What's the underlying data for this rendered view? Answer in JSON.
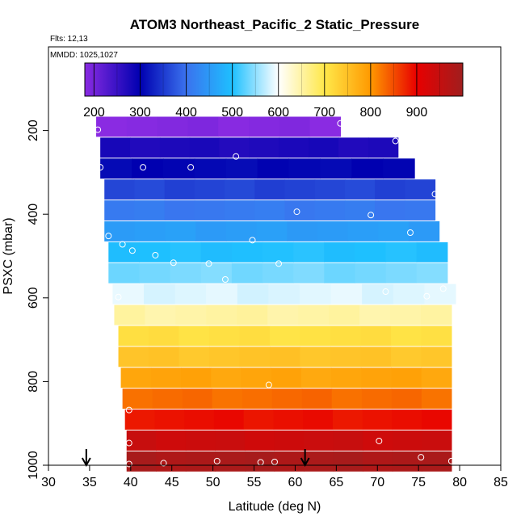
{
  "chart_data": {
    "type": "heatmap",
    "title": "ATOM3 Northeast_Pacific_2 Static_Pressure",
    "flights_label": "Flts: 12,13",
    "dates_label": "MMDD: 1025,1027",
    "xlabel": "Latitude (deg N)",
    "ylabel": "PSXC (mbar)",
    "xlim": [
      30,
      85
    ],
    "ylim": [
      1000,
      0
    ],
    "x_ticks": [
      30,
      35,
      40,
      45,
      50,
      55,
      60,
      65,
      70,
      75,
      80,
      85
    ],
    "y_ticks": [
      200,
      400,
      600,
      800,
      1000
    ],
    "grid": false,
    "colorbar": {
      "placement": "top",
      "range": [
        180,
        1000
      ],
      "ticks": [
        200,
        300,
        400,
        500,
        600,
        700,
        800,
        900
      ],
      "stops": [
        {
          "value": 180,
          "color": "#8a2be2"
        },
        {
          "value": 300,
          "color": "#0000b0"
        },
        {
          "value": 400,
          "color": "#3a72ee"
        },
        {
          "value": 500,
          "color": "#1ec0ff"
        },
        {
          "value": 600,
          "color": "#ffffff"
        },
        {
          "value": 700,
          "color": "#ffe84a"
        },
        {
          "value": 800,
          "color": "#ff9900"
        },
        {
          "value": 900,
          "color": "#e80000"
        },
        {
          "value": 1000,
          "color": "#a01e1e"
        }
      ]
    },
    "bands": [
      {
        "p": 190,
        "lat": [
          35.8,
          65.5
        ],
        "value": 185
      },
      {
        "p": 240,
        "lat": [
          36.3,
          72.5
        ],
        "value": 275
      },
      {
        "p": 290,
        "lat": [
          36.3,
          74.5
        ],
        "value": 305
      },
      {
        "p": 340,
        "lat": [
          36.8,
          77.0
        ],
        "value": 360
      },
      {
        "p": 390,
        "lat": [
          36.8,
          77.0
        ],
        "value": 410
      },
      {
        "p": 440,
        "lat": [
          36.8,
          77.5
        ],
        "value": 455
      },
      {
        "p": 490,
        "lat": [
          37.3,
          78.5
        ],
        "value": 500
      },
      {
        "p": 540,
        "lat": [
          37.3,
          78.5
        ],
        "value": 540
      },
      {
        "p": 590,
        "lat": [
          37.8,
          79.5
        ],
        "value": 585
      },
      {
        "p": 640,
        "lat": [
          38.0,
          79.0
        ],
        "value": 650
      },
      {
        "p": 690,
        "lat": [
          38.5,
          79.0
        ],
        "value": 710
      },
      {
        "p": 740,
        "lat": [
          38.5,
          79.0
        ],
        "value": 745
      },
      {
        "p": 790,
        "lat": [
          38.8,
          79.0
        ],
        "value": 785
      },
      {
        "p": 840,
        "lat": [
          39.0,
          79.0
        ],
        "value": 830
      },
      {
        "p": 890,
        "lat": [
          39.3,
          79.0
        ],
        "value": 890
      },
      {
        "p": 940,
        "lat": [
          39.5,
          79.0
        ],
        "value": 940
      },
      {
        "p": 990,
        "lat": [
          39.5,
          79.0
        ],
        "value": 985
      }
    ],
    "points": [
      {
        "lat": 36.0,
        "p": 198
      },
      {
        "lat": 65.5,
        "p": 183
      },
      {
        "lat": 72.2,
        "p": 225
      },
      {
        "lat": 52.8,
        "p": 262
      },
      {
        "lat": 36.3,
        "p": 288
      },
      {
        "lat": 41.5,
        "p": 288
      },
      {
        "lat": 47.3,
        "p": 288
      },
      {
        "lat": 77.0,
        "p": 352
      },
      {
        "lat": 60.2,
        "p": 394
      },
      {
        "lat": 69.2,
        "p": 402
      },
      {
        "lat": 37.3,
        "p": 452
      },
      {
        "lat": 54.8,
        "p": 462
      },
      {
        "lat": 74.0,
        "p": 444
      },
      {
        "lat": 39.0,
        "p": 472
      },
      {
        "lat": 40.2,
        "p": 487
      },
      {
        "lat": 43.0,
        "p": 498
      },
      {
        "lat": 45.2,
        "p": 516
      },
      {
        "lat": 49.5,
        "p": 518
      },
      {
        "lat": 58.0,
        "p": 518
      },
      {
        "lat": 51.5,
        "p": 556
      },
      {
        "lat": 71.0,
        "p": 585
      },
      {
        "lat": 38.5,
        "p": 598
      },
      {
        "lat": 76.0,
        "p": 596
      },
      {
        "lat": 78.0,
        "p": 578
      },
      {
        "lat": 56.8,
        "p": 808
      },
      {
        "lat": 39.8,
        "p": 868
      },
      {
        "lat": 39.8,
        "p": 947
      },
      {
        "lat": 70.2,
        "p": 942
      },
      {
        "lat": 75.3,
        "p": 981
      },
      {
        "lat": 79.0,
        "p": 990
      },
      {
        "lat": 39.8,
        "p": 997
      },
      {
        "lat": 44.0,
        "p": 995
      },
      {
        "lat": 50.5,
        "p": 990
      },
      {
        "lat": 55.8,
        "p": 993
      },
      {
        "lat": 57.5,
        "p": 992
      }
    ],
    "arrows": [
      {
        "lat": 34.6
      },
      {
        "lat": 61.2
      }
    ]
  }
}
